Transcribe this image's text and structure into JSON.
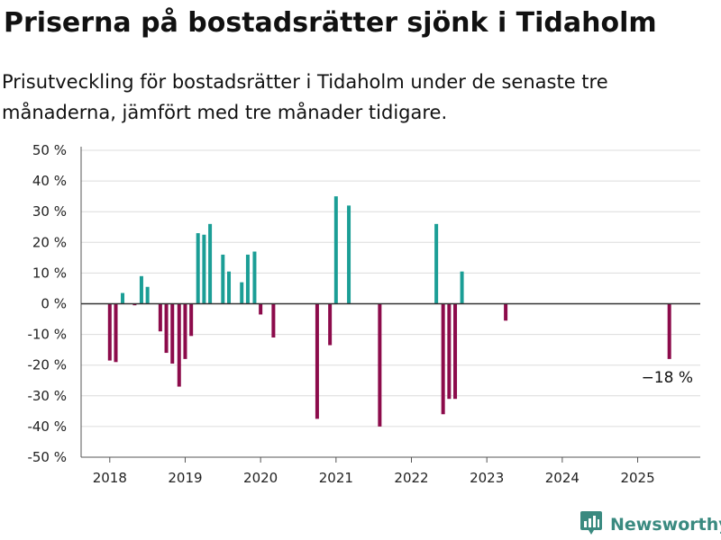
{
  "title": "Priserna på bostadsrätter sjönk i Tidaholm",
  "subtitle": "Prisutveckling för bostadsrätter i Tidaholm under de senaste tre månaderna, jämfört med tre månader tidigare.",
  "brand": "Newsworthy",
  "colors": {
    "positive": "#1b9e96",
    "negative": "#8c0b4b"
  },
  "chart_data": {
    "type": "bar",
    "y_unit": "%",
    "ylim": [
      -50,
      50
    ],
    "yticks": [
      50,
      40,
      30,
      20,
      10,
      0,
      -10,
      -20,
      -30,
      -40,
      -50
    ],
    "ytick_labels": [
      "50 %",
      "40 %",
      "30 %",
      "20 %",
      "10 %",
      "0 %",
      "-10 %",
      "-20 %",
      "-30 %",
      "-40 %",
      "-50 %"
    ],
    "xlim": [
      2017.62,
      2025.83
    ],
    "xticks": [
      "2018",
      "2019",
      "2020",
      "2021",
      "2022",
      "2023",
      "2024",
      "2025"
    ],
    "grid": true,
    "annotation": {
      "text": "−18 %",
      "x": 2025.42,
      "y": -18
    },
    "points": [
      {
        "x": 2018.0,
        "y": -18.5
      },
      {
        "x": 2018.08,
        "y": -19
      },
      {
        "x": 2018.17,
        "y": 3.5
      },
      {
        "x": 2018.33,
        "y": -0.5
      },
      {
        "x": 2018.42,
        "y": 9
      },
      {
        "x": 2018.5,
        "y": 5.5
      },
      {
        "x": 2018.67,
        "y": -9
      },
      {
        "x": 2018.75,
        "y": -16
      },
      {
        "x": 2018.83,
        "y": -19.5
      },
      {
        "x": 2018.92,
        "y": -27
      },
      {
        "x": 2019.0,
        "y": -18
      },
      {
        "x": 2019.08,
        "y": -10.5
      },
      {
        "x": 2019.17,
        "y": 23
      },
      {
        "x": 2019.25,
        "y": 22.5
      },
      {
        "x": 2019.33,
        "y": 26
      },
      {
        "x": 2019.5,
        "y": 16
      },
      {
        "x": 2019.58,
        "y": 10.5
      },
      {
        "x": 2019.75,
        "y": 7
      },
      {
        "x": 2019.83,
        "y": 16
      },
      {
        "x": 2019.92,
        "y": 17
      },
      {
        "x": 2020.0,
        "y": -3.5
      },
      {
        "x": 2020.17,
        "y": -11
      },
      {
        "x": 2020.75,
        "y": -37.5
      },
      {
        "x": 2020.92,
        "y": -13.5
      },
      {
        "x": 2021.0,
        "y": 35
      },
      {
        "x": 2021.17,
        "y": 32
      },
      {
        "x": 2021.58,
        "y": -40
      },
      {
        "x": 2022.33,
        "y": 26
      },
      {
        "x": 2022.42,
        "y": -36
      },
      {
        "x": 2022.5,
        "y": -31
      },
      {
        "x": 2022.58,
        "y": -31
      },
      {
        "x": 2022.67,
        "y": 10.5
      },
      {
        "x": 2023.25,
        "y": -5.5
      },
      {
        "x": 2025.42,
        "y": -18
      }
    ]
  }
}
